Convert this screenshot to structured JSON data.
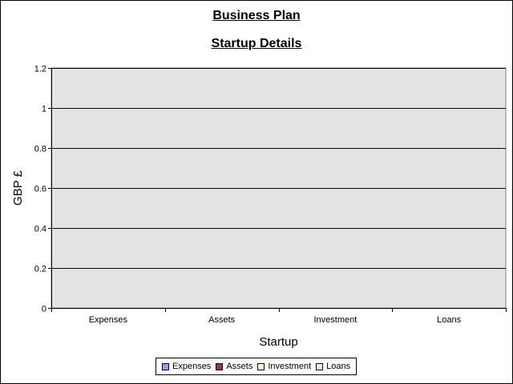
{
  "chart_data": {
    "type": "bar",
    "title": "Business Plan",
    "subtitle": "Startup Details",
    "xlabel": "Startup",
    "ylabel": "GBP £",
    "categories": [
      "Expenses",
      "Assets",
      "Investment",
      "Loans"
    ],
    "ylim": [
      0,
      1.2
    ],
    "yticks": [
      "0",
      "0.2",
      "0.4",
      "0.6",
      "0.8",
      "1",
      "1.2"
    ],
    "grid": true,
    "legend_position": "bottom",
    "plot_background": "#e3e3e3",
    "series": [
      {
        "name": "Expenses",
        "color": "#9999ff",
        "values": [
          0,
          0,
          0,
          0
        ]
      },
      {
        "name": "Assets",
        "color": "#993366",
        "values": [
          0,
          0,
          0,
          0
        ]
      },
      {
        "name": "Investment",
        "color": "#ffffcc",
        "values": [
          0,
          0,
          0,
          0
        ]
      },
      {
        "name": "Loans",
        "color": "#ccffff",
        "values": [
          0,
          0,
          0,
          0
        ]
      }
    ]
  }
}
